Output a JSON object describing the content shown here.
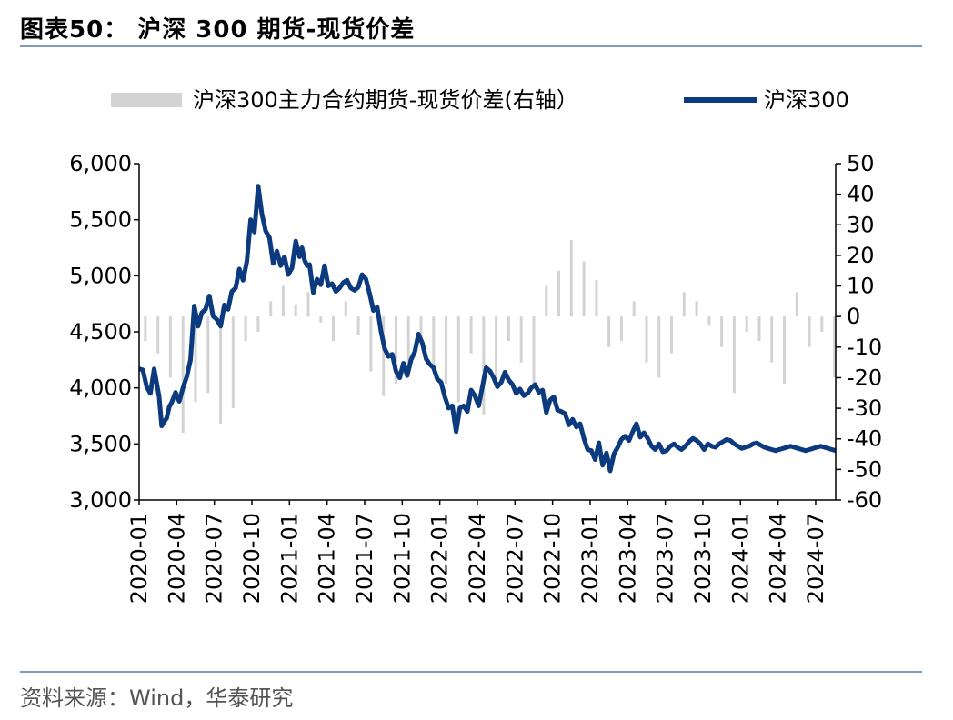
{
  "title": "图表50：  沪深 300 期货-现货价差",
  "source": "资料来源：Wind，华泰研究",
  "colors": {
    "line": "#0b3a7e",
    "bars": "#d3d3d3",
    "rule": "#7f9cbf"
  },
  "chart_data": {
    "type": "bar+line",
    "legend": [
      {
        "name": "沪深300主力合约期货-现货价差(右轴）",
        "kind": "bar"
      },
      {
        "name": "沪深300",
        "kind": "line"
      }
    ],
    "legend_position": "top",
    "left_axis": {
      "ylim": [
        3000,
        6000
      ],
      "ticks": [
        "3,000",
        "3,500",
        "4,000",
        "4,500",
        "5,000",
        "5,500",
        "6,000"
      ]
    },
    "right_axis": {
      "ylim": [
        -60,
        50
      ],
      "ticks": [
        "-60",
        "-50",
        "-40",
        "-30",
        "-20",
        "-10",
        "0",
        "10",
        "20",
        "30",
        "40",
        "50"
      ]
    },
    "x_ticks": [
      "2020-01",
      "2020-04",
      "2020-07",
      "2020-10",
      "2021-01",
      "2021-04",
      "2021-07",
      "2021-10",
      "2022-01",
      "2022-04",
      "2022-07",
      "2022-10",
      "2023-01",
      "2023-04",
      "2023-07",
      "2023-10",
      "2024-01",
      "2024-04",
      "2024-07"
    ],
    "x_range": [
      "2020-01",
      "2024-08"
    ],
    "series": [
      {
        "name": "沪深300",
        "axis": "left",
        "x": [
          0,
          0.3,
          0.6,
          0.9,
          1.2,
          1.6,
          1.8,
          2.0,
          2.2,
          2.4,
          2.6,
          2.9,
          3.2,
          3.5,
          3.8,
          4.1,
          4.4,
          4.7,
          5.0,
          5.3,
          5.6,
          5.9,
          6.2,
          6.5,
          6.8,
          7.1,
          7.4,
          7.7,
          8.0,
          8.3,
          8.6,
          8.9,
          9.2,
          9.5,
          9.8,
          10.1,
          10.4,
          10.7,
          11.0,
          11.3,
          11.6,
          11.9,
          12.2,
          12.5,
          12.8,
          13.0,
          13.2,
          13.4,
          13.6,
          13.9,
          14.2,
          14.5,
          14.8,
          15.1,
          15.4,
          15.7,
          16.0,
          16.3,
          16.6,
          16.9,
          17.2,
          17.5,
          17.8,
          18.1,
          18.4,
          18.7,
          19.0,
          19.3,
          19.6,
          19.9,
          20.2,
          20.5,
          20.8,
          21.1,
          21.4,
          21.7,
          22.0,
          22.3,
          22.6,
          22.9,
          23.2,
          23.5,
          23.8,
          24.1,
          24.4,
          24.7,
          25.0,
          25.3,
          25.6,
          25.9,
          26.2,
          26.5,
          26.8,
          27.1,
          27.4,
          27.7,
          28.0,
          28.3,
          28.6,
          28.9,
          29.2,
          29.5,
          29.8,
          30.1,
          30.4,
          30.7,
          31.0,
          31.3,
          31.6,
          31.9,
          32.2,
          32.5,
          32.8,
          33.1,
          33.4,
          33.7,
          34.0,
          34.3,
          34.6,
          34.9,
          35.2,
          35.5,
          35.8,
          36.1,
          36.4,
          36.7,
          37.0,
          37.3,
          37.6,
          37.9,
          38.2,
          38.5,
          38.8,
          39.1,
          39.4,
          39.7,
          40.0,
          40.3,
          40.6,
          40.9,
          41.2,
          41.5,
          41.8,
          42.1,
          42.4,
          42.7,
          43.0,
          43.3,
          43.6,
          43.9,
          44.2,
          44.5,
          44.8,
          45.1,
          45.4,
          45.7,
          46.0,
          46.3,
          46.6,
          46.9,
          47.2,
          47.5,
          47.8,
          48.1,
          48.4,
          48.7,
          49.0,
          49.3,
          49.6,
          49.9,
          50.2,
          50.5,
          50.8,
          51.1,
          51.4,
          51.7,
          52.0,
          52.3,
          52.6,
          52.9,
          53.2,
          53.5,
          53.8,
          54.1,
          54.4,
          54.7,
          55.0,
          55.3,
          55.6
        ],
        "values": [
          4170,
          4160,
          4010,
          3950,
          4170,
          3920,
          3660,
          3700,
          3730,
          3830,
          3870,
          3960,
          3880,
          4000,
          4100,
          4250,
          4730,
          4550,
          4670,
          4700,
          4820,
          4640,
          4610,
          4550,
          4740,
          4700,
          4860,
          4890,
          5060,
          4960,
          5130,
          5500,
          5390,
          5800,
          5550,
          5400,
          5340,
          5110,
          5220,
          5090,
          5170,
          5010,
          5070,
          5310,
          5170,
          5250,
          5140,
          5090,
          5100,
          4850,
          4970,
          4920,
          5090,
          4910,
          4930,
          4860,
          4890,
          4940,
          4960,
          4890,
          4870,
          4900,
          5010,
          4970,
          4840,
          4690,
          4720,
          4510,
          4350,
          4280,
          4300,
          4150,
          4090,
          4220,
          4110,
          4250,
          4320,
          4480,
          4400,
          4260,
          4210,
          4180,
          4080,
          4050,
          3920,
          3820,
          3840,
          3610,
          3820,
          3840,
          3790,
          3980,
          3930,
          3840,
          4010,
          4180,
          4150,
          4090,
          4010,
          4050,
          4140,
          4070,
          4030,
          3950,
          3990,
          3930,
          3950,
          4000,
          4030,
          3960,
          3980,
          3780,
          3890,
          3920,
          3800,
          3790,
          3770,
          3670,
          3720,
          3650,
          3680,
          3550,
          3450,
          3440,
          3360,
          3510,
          3310,
          3420,
          3260,
          3410,
          3470,
          3540,
          3570,
          3530,
          3610,
          3680,
          3560,
          3600,
          3550,
          3480,
          3450,
          3500,
          3430,
          3440,
          3480,
          3500,
          3470,
          3450,
          3480,
          3520,
          3550,
          3530,
          3500,
          3450,
          3500,
          3480,
          3470,
          3500,
          3520,
          3540,
          3530,
          3500,
          3480,
          3460,
          3470,
          3480,
          3500,
          3510,
          3490,
          3470,
          3460,
          3450,
          3440,
          3450,
          3460,
          3470,
          3480,
          3470,
          3460,
          3450,
          3440,
          3450,
          3460,
          3470,
          3480,
          3470,
          3460,
          3450,
          3440
        ]
      },
      {
        "name": "沪深300主力合约期货-现货价差",
        "axis": "right",
        "x": [
          0.5,
          1.5,
          2.5,
          3.5,
          4.5,
          5.5,
          6.5,
          7.5,
          8.5,
          9.5,
          10.5,
          11.5,
          12.5,
          13.5,
          14.5,
          15.5,
          16.5,
          17.5,
          18.5,
          19.5,
          20.5,
          21.5,
          22.5,
          23.5,
          24.5,
          25.5,
          26.5,
          27.5,
          28.5,
          29.5,
          30.5,
          31.5,
          32.5,
          33.5,
          34.5,
          35.5,
          36.5,
          37.5,
          38.5,
          39.5,
          40.5,
          41.5,
          42.5,
          43.5,
          44.5,
          45.5,
          46.5,
          47.5,
          48.5,
          49.5,
          50.5,
          51.5,
          52.5,
          53.5,
          54.5,
          55.5
        ],
        "values": [
          -8,
          -12,
          -20,
          -38,
          -28,
          -25,
          -35,
          -30,
          -8,
          -5,
          5,
          10,
          4,
          8,
          -2,
          -8,
          5,
          -6,
          -18,
          -26,
          -22,
          -15,
          -8,
          -18,
          -22,
          -28,
          -12,
          -32,
          -20,
          -8,
          -15,
          -22,
          10,
          15,
          25,
          18,
          12,
          -10,
          -8,
          5,
          -15,
          -20,
          -12,
          8,
          5,
          -3,
          -10,
          -25,
          -5,
          -8,
          -15,
          -22,
          8,
          -10,
          -5,
          -20
        ]
      }
    ]
  }
}
